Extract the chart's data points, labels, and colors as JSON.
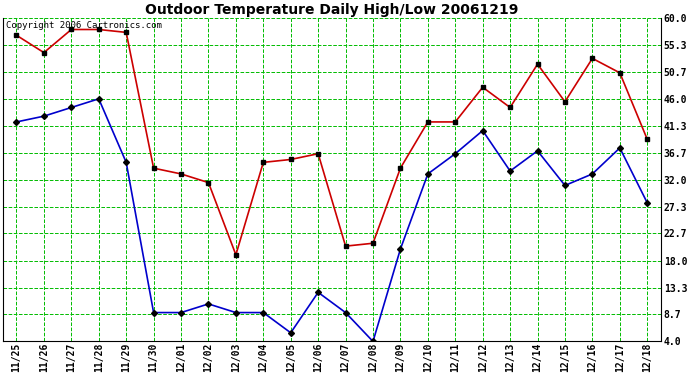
{
  "title": "Outdoor Temperature Daily High/Low 20061219",
  "copyright_text": "Copyright 2006 Cartronics.com",
  "dates": [
    "11/25",
    "11/26",
    "11/27",
    "11/28",
    "11/29",
    "11/30",
    "12/01",
    "12/02",
    "12/03",
    "12/04",
    "12/05",
    "12/06",
    "12/07",
    "12/08",
    "12/09",
    "12/10",
    "12/11",
    "12/12",
    "12/13",
    "12/14",
    "12/15",
    "12/16",
    "12/17",
    "12/18"
  ],
  "high_values": [
    57.0,
    54.0,
    58.0,
    58.0,
    57.5,
    34.0,
    33.0,
    31.5,
    19.0,
    35.0,
    35.5,
    36.5,
    20.5,
    21.0,
    34.0,
    42.0,
    42.0,
    48.0,
    44.5,
    52.0,
    45.5,
    53.0,
    50.5,
    39.0
  ],
  "low_values": [
    42.0,
    43.0,
    44.5,
    46.0,
    35.0,
    9.0,
    9.0,
    10.5,
    9.0,
    9.0,
    5.5,
    12.5,
    9.0,
    4.0,
    20.0,
    33.0,
    36.5,
    40.5,
    33.5,
    37.0,
    31.0,
    33.0,
    37.5,
    28.0
  ],
  "high_color": "#cc0000",
  "low_color": "#0000cc",
  "marker_color": "#000000",
  "bg_color": "#ffffff",
  "plot_bg_color": "#ffffff",
  "grid_color": "#00bb00",
  "title_color": "#000000",
  "ymin": 4.0,
  "ymax": 60.0,
  "ytick_values": [
    4.0,
    8.7,
    13.3,
    18.0,
    22.7,
    27.3,
    32.0,
    36.7,
    41.3,
    46.0,
    50.7,
    55.3,
    60.0
  ],
  "ytick_labels": [
    "4.0",
    "8.7",
    "13.3",
    "18.0",
    "22.7",
    "27.3",
    "32.0",
    "36.7",
    "41.3",
    "46.0",
    "50.7",
    "55.3",
    "60.0"
  ],
  "title_fontsize": 10,
  "tick_fontsize": 7,
  "copyright_fontsize": 6.5,
  "line_width": 1.2,
  "marker_size": 3
}
